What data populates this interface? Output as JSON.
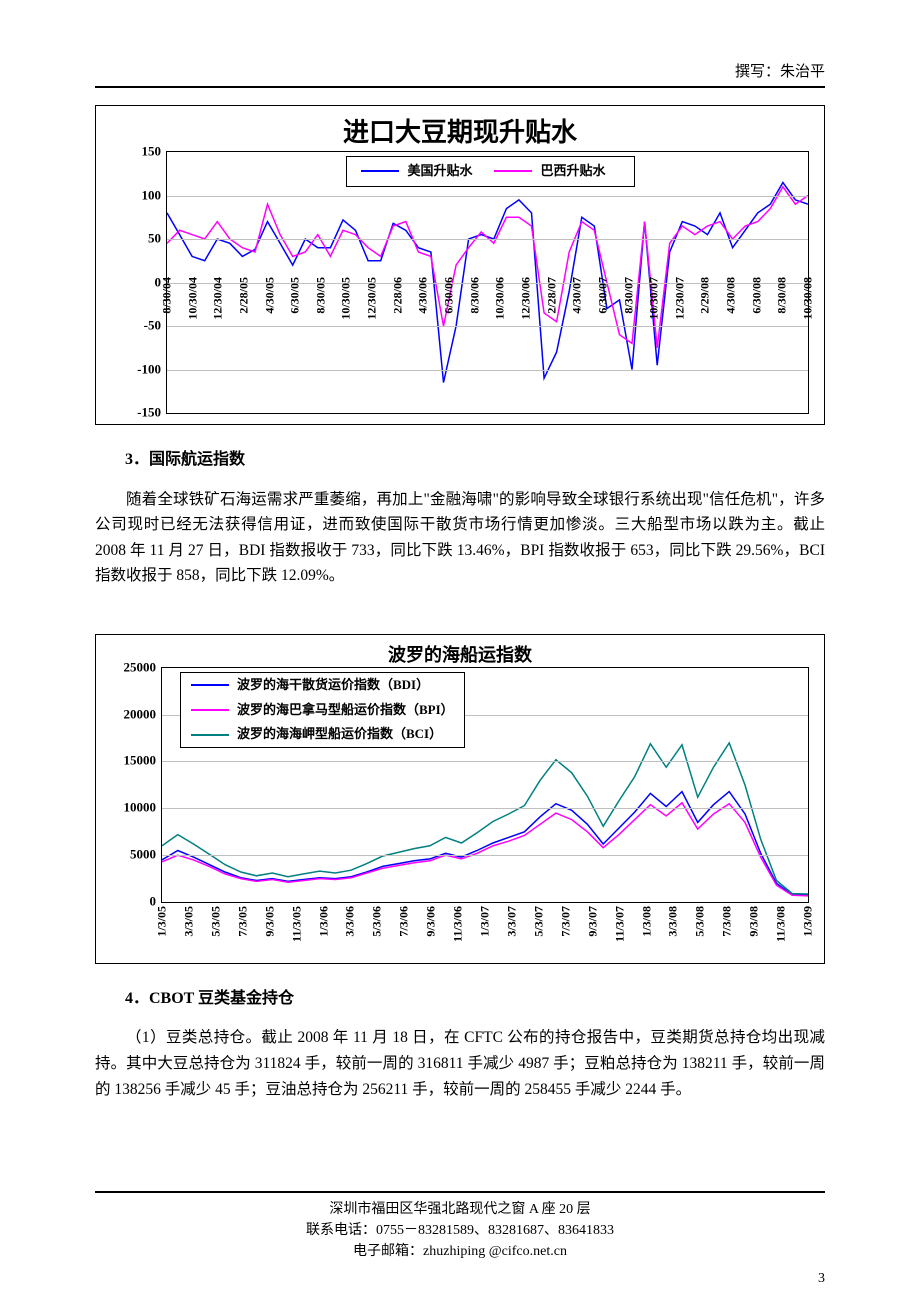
{
  "header": {
    "author_label": "撰写：朱治平"
  },
  "chart1": {
    "type": "line",
    "title": "进口大豆期现升贴水",
    "title_fontsize": 26,
    "background_color": "#ffffff",
    "grid_color": "#c0c0c0",
    "ylim": [
      -150,
      150
    ],
    "ytick_step": 50,
    "yticks": [
      150,
      100,
      50,
      0,
      -50,
      -100,
      -150
    ],
    "xticks": [
      "8/30/04",
      "10/30/04",
      "12/30/04",
      "2/28/05",
      "4/30/05",
      "6/30/05",
      "8/30/05",
      "10/30/05",
      "12/30/05",
      "2/28/06",
      "4/30/06",
      "6/30/06",
      "8/30/06",
      "10/30/06",
      "12/30/06",
      "2/28/07",
      "4/30/07",
      "6/30/07",
      "8/30/07",
      "10/30/07",
      "12/30/07",
      "2/29/08",
      "4/30/08",
      "6/30/08",
      "8/30/08",
      "10/30/08"
    ],
    "series": [
      {
        "name": "美国升贴水",
        "color": "#0000ff",
        "line_width": 1.5,
        "values": [
          80,
          55,
          30,
          25,
          50,
          45,
          30,
          38,
          70,
          45,
          20,
          50,
          40,
          40,
          72,
          60,
          25,
          25,
          68,
          60,
          40,
          35,
          -115,
          -50,
          50,
          55,
          50,
          85,
          95,
          80,
          -110,
          -80,
          -10,
          75,
          65,
          -30,
          -20,
          -100,
          70,
          -95,
          35,
          70,
          65,
          55,
          80,
          40,
          60,
          80,
          90,
          115,
          95,
          90
        ]
      },
      {
        "name": "巴西升贴水",
        "color": "#ff00ff",
        "line_width": 1.5,
        "values": [
          45,
          60,
          55,
          50,
          70,
          50,
          40,
          35,
          90,
          55,
          30,
          35,
          55,
          30,
          60,
          55,
          40,
          30,
          65,
          70,
          35,
          30,
          -50,
          20,
          40,
          58,
          45,
          75,
          75,
          65,
          -35,
          -45,
          35,
          70,
          60,
          0,
          -60,
          -70,
          70,
          -75,
          45,
          65,
          55,
          65,
          70,
          50,
          65,
          70,
          85,
          110,
          90,
          100
        ]
      }
    ],
    "legend": {
      "position": "top-center",
      "border_color": "#000000"
    }
  },
  "section3": {
    "heading": "3．国际航运指数",
    "body": "随着全球铁矿石海运需求严重萎缩，再加上\"金融海啸\"的影响导致全球银行系统出现\"信任危机\"，许多公司现时已经无法获得信用证，进而致使国际干散货市场行情更加惨淡。三大船型市场以跌为主。截止 2008 年 11 月 27 日，BDI 指数报收于 733，同比下跌 13.46%，BPI 指数收报于 653，同比下跌 29.56%，BCI 指数收报于 858，同比下跌 12.09%。"
  },
  "chart2": {
    "type": "line",
    "title": "波罗的海船运指数",
    "title_fontsize": 18,
    "background_color": "#ffffff",
    "grid_color": "#c0c0c0",
    "ylim": [
      0,
      25000
    ],
    "ytick_step": 5000,
    "yticks": [
      25000,
      20000,
      15000,
      10000,
      5000,
      0
    ],
    "xticks": [
      "1/3/05",
      "3/3/05",
      "5/3/05",
      "7/3/05",
      "9/3/05",
      "11/3/05",
      "1/3/06",
      "3/3/06",
      "5/3/06",
      "7/3/06",
      "9/3/06",
      "11/3/06",
      "1/3/07",
      "3/3/07",
      "5/3/07",
      "7/3/07",
      "9/3/07",
      "11/3/07",
      "1/3/08",
      "3/3/08",
      "5/3/08",
      "7/3/08",
      "9/3/08",
      "11/3/08",
      "1/3/09"
    ],
    "series": [
      {
        "name": "波罗的海干散货运价指数（BDI）",
        "color": "#0000ff",
        "line_width": 1.5,
        "values": [
          4500,
          5500,
          4800,
          4000,
          3200,
          2600,
          2300,
          2500,
          2200,
          2400,
          2600,
          2500,
          2700,
          3200,
          3800,
          4100,
          4400,
          4600,
          5200,
          4800,
          5500,
          6300,
          6900,
          7500,
          9100,
          10500,
          9800,
          8300,
          6200,
          7900,
          9600,
          11600,
          10200,
          11800,
          8500,
          10400,
          11800,
          9400,
          5200,
          2000,
          780,
          733
        ]
      },
      {
        "name": "波罗的海巴拿马型船运价指数（BPI）",
        "color": "#ff00ff",
        "line_width": 1.5,
        "values": [
          4300,
          5000,
          4500,
          3800,
          3000,
          2500,
          2200,
          2400,
          2100,
          2300,
          2500,
          2400,
          2600,
          3100,
          3600,
          3900,
          4200,
          4400,
          5000,
          4600,
          5200,
          6000,
          6500,
          7100,
          8300,
          9500,
          8800,
          7500,
          5800,
          7200,
          8800,
          10400,
          9200,
          10600,
          7800,
          9400,
          10500,
          8500,
          4800,
          1800,
          720,
          653
        ]
      },
      {
        "name": "波罗的海海岬型船运价指数（BCI）",
        "color": "#008080",
        "line_width": 1.5,
        "values": [
          6000,
          7200,
          6200,
          5100,
          4000,
          3200,
          2800,
          3100,
          2700,
          3000,
          3300,
          3100,
          3400,
          4100,
          4900,
          5300,
          5700,
          6000,
          6900,
          6300,
          7400,
          8600,
          9400,
          10300,
          13000,
          15200,
          13800,
          11300,
          8100,
          10800,
          13400,
          16900,
          14400,
          16800,
          11200,
          14400,
          17000,
          12500,
          6700,
          2300,
          900,
          858
        ]
      }
    ],
    "legend": {
      "position": "top-left",
      "border_color": "#000000"
    }
  },
  "section4": {
    "heading": "4．CBOT 豆类基金持仓",
    "body": "（1）豆类总持仓。截止 2008 年 11 月 18 日，在 CFTC 公布的持仓报告中，豆类期货总持仓均出现减持。其中大豆总持仓为 311824 手，较前一周的 316811 手减少 4987 手；豆粕总持仓为 138211 手，较前一周的 138256 手减少 45 手；豆油总持仓为 256211 手，较前一周的 258455 手减少 2244 手。"
  },
  "footer": {
    "addr": "深圳市福田区华强北路现代之窗 A 座 20 层",
    "tel": "联系电话：0755－83281589、83281687、83641833",
    "email": "电子邮箱：zhuzhiping @cifco.net.cn",
    "pagenum": "3"
  }
}
